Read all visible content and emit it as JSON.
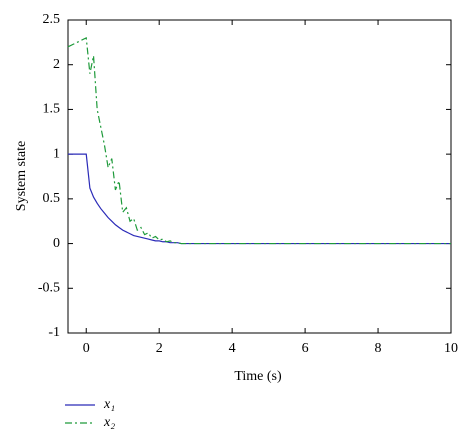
{
  "chart_data": {
    "type": "line",
    "xlabel": "Time (s)",
    "ylabel": "System state",
    "x": [
      -0.5,
      0,
      0.1,
      0.2,
      0.3,
      0.4,
      0.5,
      0.6,
      0.7,
      0.8,
      0.9,
      1.0,
      1.1,
      1.2,
      1.3,
      1.4,
      1.5,
      1.6,
      1.7,
      1.8,
      1.9,
      2.0,
      2.1,
      2.2,
      2.3,
      2.4,
      2.5,
      2.6,
      2.7,
      2.8,
      2.9,
      3.0,
      10
    ],
    "series": [
      {
        "name": "x₁",
        "color": "#2b2bb8",
        "dash": "solid",
        "values": [
          1,
          1,
          0.62,
          0.52,
          0.45,
          0.39,
          0.34,
          0.29,
          0.25,
          0.21,
          0.18,
          0.15,
          0.13,
          0.11,
          0.09,
          0.08,
          0.07,
          0.06,
          0.05,
          0.04,
          0.03,
          0.03,
          0.02,
          0.02,
          0.01,
          0.01,
          0.01,
          0,
          0,
          0,
          0,
          0,
          0
        ]
      },
      {
        "name": "x₂",
        "color": "#1e9a3a",
        "dash": "dashdot",
        "values": [
          2.2,
          2.3,
          1.9,
          2.1,
          1.5,
          1.3,
          1.1,
          0.85,
          0.95,
          0.6,
          0.7,
          0.35,
          0.4,
          0.25,
          0.28,
          0.15,
          0.18,
          0.1,
          0.12,
          0.06,
          0.08,
          0.04,
          0.05,
          0.02,
          0.03,
          0.01,
          0.01,
          0,
          0,
          0,
          0,
          0,
          0
        ]
      }
    ],
    "xlim": [
      -0.5,
      10
    ],
    "ylim": [
      -1,
      2.5
    ],
    "xticks": [
      0,
      2,
      4,
      6,
      8,
      10
    ],
    "yticks": [
      -1,
      -0.5,
      0,
      0.5,
      1,
      1.5,
      2,
      2.5
    ],
    "legend": "below-left"
  }
}
